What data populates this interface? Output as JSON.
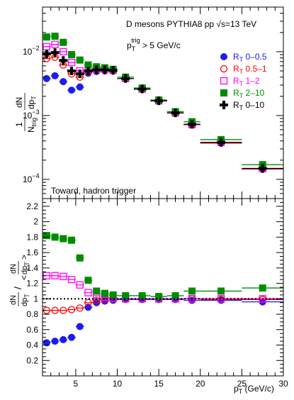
{
  "chart_data": [
    {
      "type": "scatter",
      "panel": "top",
      "title": "D mesons PYTHIA8 pp √s=13 TeV",
      "annotation_trigger": {
        "main": "p",
        "sub": "T",
        "sup": "trig",
        "rest": " > 5 GeV/c"
      },
      "annotation_corner": "Toward, hadron trigger",
      "ylabel": "1/N_trig dN/dp_T",
      "yscale": "log",
      "ylim": [
        5e-05,
        0.05
      ],
      "xlim": [
        1,
        30
      ],
      "y_ticks": [
        {
          "value": 0.01,
          "base": "10",
          "exp": "−2"
        },
        {
          "value": 0.001,
          "base": "10",
          "exp": "−3"
        },
        {
          "value": 0.0001,
          "base": "10",
          "exp": "−4"
        }
      ],
      "legend_position": "right",
      "x": [
        1.5,
        2.5,
        3.5,
        4.5,
        5.5,
        6.5,
        7.5,
        8.5,
        9.5,
        11,
        13,
        15,
        17,
        19,
        22.5,
        27.5
      ],
      "xerr": [
        0.5,
        0.5,
        0.5,
        0.5,
        0.5,
        0.5,
        0.5,
        0.5,
        0.5,
        1,
        1,
        1,
        1,
        1,
        2.5,
        2.5
      ],
      "series": [
        {
          "name": "R_T 0–0.5",
          "sub": "T",
          "label": " 0–0.5",
          "color": "#1c1cf0",
          "marker": "circle-filled",
          "values": [
            0.0038,
            0.0042,
            0.0034,
            0.0025,
            0.0028,
            0.0046,
            0.0049,
            0.005,
            0.0051,
            0.0038,
            0.0026,
            0.0017,
            0.0011,
            0.00072,
            0.00037,
            0.000145
          ]
        },
        {
          "name": "R_T 0.5–1",
          "sub": "T",
          "label": " 0.5–1",
          "color": "#ff0000",
          "marker": "circle-open",
          "values": [
            0.0078,
            0.0082,
            0.0062,
            0.0045,
            0.004,
            0.0048,
            0.0051,
            0.0052,
            0.0051,
            0.0038,
            0.0026,
            0.0017,
            0.0011,
            0.00072,
            0.00037,
            0.000145
          ]
        },
        {
          "name": "R_T 1–2",
          "sub": "T",
          "label": " 1–2",
          "color": "#ff00ff",
          "marker": "square-open",
          "values": [
            0.012,
            0.013,
            0.01,
            0.0068,
            0.005,
            0.0052,
            0.0054,
            0.0053,
            0.0051,
            0.0038,
            0.0026,
            0.0017,
            0.0011,
            0.00072,
            0.00038,
            0.000148
          ]
        },
        {
          "name": "R_T 2–10",
          "sub": "T",
          "label": " 2–10",
          "color": "#008c00",
          "marker": "square-filled",
          "values": [
            0.017,
            0.0175,
            0.014,
            0.009,
            0.0074,
            0.0062,
            0.0058,
            0.0056,
            0.0053,
            0.004,
            0.0027,
            0.00175,
            0.00115,
            0.0008,
            0.00042,
            0.00017
          ]
        },
        {
          "name": "R_T 0–10",
          "sub": "T",
          "label": " 0–10",
          "color": "#000000",
          "marker": "cross",
          "values": [
            0.0092,
            0.0097,
            0.0073,
            0.005,
            0.0045,
            0.005,
            0.0052,
            0.0052,
            0.0051,
            0.0038,
            0.0026,
            0.0017,
            0.0011,
            0.00073,
            0.00038,
            0.000148
          ]
        }
      ]
    },
    {
      "type": "scatter",
      "panel": "bottom",
      "ylabel": "dN/dp_T / <dN/dp_T>",
      "xlabel": "p_T (GeV/c)",
      "xlabel_parts": {
        "main": "p",
        "sub": "T",
        "rest": " (GeV/c)"
      },
      "ylim": [
        0,
        2.3
      ],
      "xlim": [
        1,
        30
      ],
      "y_ticks": [
        0.2,
        0.4,
        0.6,
        0.8,
        1,
        1.2,
        1.4,
        1.6,
        1.8,
        2,
        2.2
      ],
      "y_tick_labels": [
        "0.2",
        "0.4",
        "0.6",
        "0.8",
        "1",
        "1.2",
        "1.4",
        "1.6",
        "1.8",
        "2",
        "2.2"
      ],
      "x_ticks": [
        5,
        10,
        15,
        20,
        25,
        30
      ],
      "x_tick_labels": [
        "5",
        "10",
        "15",
        "20",
        "25",
        "30"
      ],
      "reference_line": 1,
      "x": [
        1.5,
        2.5,
        3.5,
        4.5,
        5.5,
        6.5,
        7.5,
        8.5,
        9.5,
        11,
        13,
        15,
        17,
        19,
        22.5,
        27.5
      ],
      "xerr": [
        0.5,
        0.5,
        0.5,
        0.5,
        0.5,
        0.5,
        0.5,
        0.5,
        0.5,
        1,
        1,
        1,
        1,
        1,
        2.5,
        2.5
      ],
      "series": [
        {
          "name": "R_T 0–0.5",
          "color": "#1c1cf0",
          "marker": "circle-filled",
          "values": [
            0.43,
            0.45,
            0.47,
            0.5,
            0.64,
            0.89,
            0.95,
            0.97,
            0.98,
            0.99,
            0.99,
            0.99,
            0.99,
            0.98,
            0.98,
            0.96
          ]
        },
        {
          "name": "R_T 0.5–1",
          "color": "#ff0000",
          "marker": "circle-open",
          "values": [
            0.85,
            0.85,
            0.85,
            0.86,
            0.88,
            0.95,
            0.98,
            0.99,
            1.0,
            1.0,
            1.0,
            1.0,
            1.0,
            1.0,
            0.99,
            0.99
          ]
        },
        {
          "name": "R_T 1–2",
          "color": "#ff00ff",
          "marker": "square-open",
          "values": [
            1.3,
            1.3,
            1.29,
            1.25,
            1.18,
            1.08,
            1.04,
            1.02,
            1.01,
            1.0,
            1.0,
            1.0,
            1.0,
            1.0,
            1.0,
            1.0
          ]
        },
        {
          "name": "R_T 2–10",
          "color": "#008c00",
          "marker": "square-filled",
          "values": [
            1.82,
            1.8,
            1.78,
            1.76,
            1.53,
            1.24,
            1.1,
            1.07,
            1.05,
            1.04,
            1.04,
            1.03,
            1.04,
            1.1,
            1.1,
            1.14
          ]
        }
      ]
    }
  ]
}
